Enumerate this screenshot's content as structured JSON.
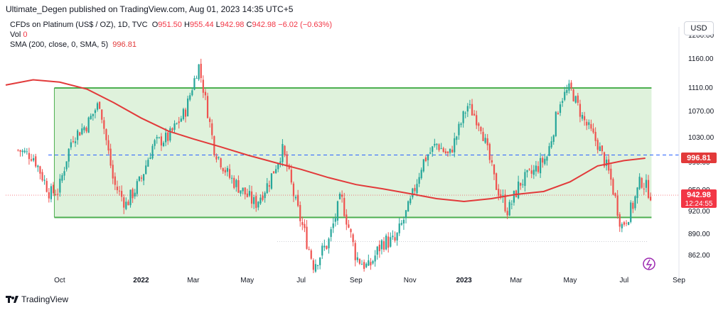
{
  "header": {
    "publisher": "Ultimate_Degen published on TradingView.com, Aug 01, 2023 14:35 UTC+5"
  },
  "legend": {
    "symbol": "CFDs on Platinum (US$ / OZ), 1D, TVC",
    "open_label": "O",
    "open_value": "951.50",
    "high_label": "H",
    "high_value": "955.44",
    "low_label": "L",
    "low_value": "942.98",
    "close_label": "C",
    "close_value": "942.98",
    "change": "−6.02 (−0.63%)",
    "vol_label": "Vol",
    "vol_value": "0",
    "sma_label": "SMA (200, close, 0, SMA, 5)",
    "sma_value": "996.81"
  },
  "currency_button": "USD",
  "branding": {
    "logo_text": "TradingView"
  },
  "colors": {
    "up": "#26a69a",
    "down": "#ef5350",
    "sma": "#e23a3a",
    "channel_fill": "#dff2dc",
    "channel_line": "#4caf50",
    "dashed_line": "#2962ff",
    "price_badge": "#f23645"
  },
  "chart_data": {
    "type": "candlestick",
    "y_axis": {
      "ticks": [
        862,
        890,
        920,
        950,
        990,
        1030,
        1070,
        1110,
        1160,
        1200
      ],
      "tick_labels": [
        "862.00",
        "890.00",
        "920.00",
        "950.00",
        "990.00",
        "1030.00",
        "1070.00",
        "1110.00",
        "1160.00",
        "1200.00"
      ]
    },
    "x_axis": {
      "ticks": [
        {
          "label": "Oct",
          "date": "2021-10-01",
          "bold": false
        },
        {
          "label": "2022",
          "date": "2022-01-01",
          "bold": true
        },
        {
          "label": "Mar",
          "date": "2022-03-01",
          "bold": false
        },
        {
          "label": "May",
          "date": "2022-05-01",
          "bold": false
        },
        {
          "label": "Jul",
          "date": "2022-07-01",
          "bold": false
        },
        {
          "label": "Sep",
          "date": "2022-09-01",
          "bold": false
        },
        {
          "label": "Nov",
          "date": "2022-11-01",
          "bold": false
        },
        {
          "label": "2023",
          "date": "2023-01-01",
          "bold": true
        },
        {
          "label": "Mar",
          "date": "2023-03-01",
          "bold": false
        },
        {
          "label": "May",
          "date": "2023-05-01",
          "bold": false
        },
        {
          "label": "Jul",
          "date": "2023-07-01",
          "bold": false
        },
        {
          "label": "Sep",
          "date": "2023-09-01",
          "bold": false
        }
      ]
    },
    "closes": [
      {
        "date": "2021-08-15",
        "close": 1010
      },
      {
        "date": "2021-09-01",
        "close": 1000
      },
      {
        "date": "2021-09-20",
        "close": 945
      },
      {
        "date": "2021-09-30",
        "close": 950
      },
      {
        "date": "2021-10-15",
        "close": 1030
      },
      {
        "date": "2021-11-01",
        "close": 1050
      },
      {
        "date": "2021-11-15",
        "close": 1085
      },
      {
        "date": "2021-12-01",
        "close": 960
      },
      {
        "date": "2021-12-15",
        "close": 930
      },
      {
        "date": "2022-01-01",
        "close": 965
      },
      {
        "date": "2022-01-15",
        "close": 1020
      },
      {
        "date": "2022-02-01",
        "close": 1030
      },
      {
        "date": "2022-02-20",
        "close": 1070
      },
      {
        "date": "2022-03-07",
        "close": 1150
      },
      {
        "date": "2022-03-25",
        "close": 1010
      },
      {
        "date": "2022-04-10",
        "close": 970
      },
      {
        "date": "2022-04-25",
        "close": 950
      },
      {
        "date": "2022-05-10",
        "close": 930
      },
      {
        "date": "2022-05-25",
        "close": 960
      },
      {
        "date": "2022-06-10",
        "close": 1010
      },
      {
        "date": "2022-06-25",
        "close": 930
      },
      {
        "date": "2022-07-15",
        "close": 850
      },
      {
        "date": "2022-08-01",
        "close": 880
      },
      {
        "date": "2022-08-15",
        "close": 940
      },
      {
        "date": "2022-09-01",
        "close": 860
      },
      {
        "date": "2022-09-15",
        "close": 845
      },
      {
        "date": "2022-10-01",
        "close": 880
      },
      {
        "date": "2022-10-15",
        "close": 880
      },
      {
        "date": "2022-11-01",
        "close": 930
      },
      {
        "date": "2022-11-15",
        "close": 990
      },
      {
        "date": "2022-12-01",
        "close": 1020
      },
      {
        "date": "2022-12-15",
        "close": 1000
      },
      {
        "date": "2023-01-05",
        "close": 1080
      },
      {
        "date": "2023-01-20",
        "close": 1050
      },
      {
        "date": "2023-02-05",
        "close": 960
      },
      {
        "date": "2023-02-20",
        "close": 920
      },
      {
        "date": "2023-03-05",
        "close": 960
      },
      {
        "date": "2023-03-20",
        "close": 975
      },
      {
        "date": "2023-04-05",
        "close": 1000
      },
      {
        "date": "2023-04-20",
        "close": 1090
      },
      {
        "date": "2023-05-01",
        "close": 1110
      },
      {
        "date": "2023-05-15",
        "close": 1060
      },
      {
        "date": "2023-06-01",
        "close": 1020
      },
      {
        "date": "2023-06-15",
        "close": 970
      },
      {
        "date": "2023-06-28",
        "close": 900
      },
      {
        "date": "2023-07-10",
        "close": 925
      },
      {
        "date": "2023-07-20",
        "close": 965
      },
      {
        "date": "2023-08-01",
        "close": 942.98
      }
    ],
    "sma_200": [
      {
        "date": "2021-08-01",
        "value": 1115
      },
      {
        "date": "2021-09-01",
        "value": 1124
      },
      {
        "date": "2021-10-01",
        "value": 1120
      },
      {
        "date": "2021-11-01",
        "value": 1108
      },
      {
        "date": "2021-12-01",
        "value": 1085
      },
      {
        "date": "2022-01-01",
        "value": 1060
      },
      {
        "date": "2022-02-01",
        "value": 1040
      },
      {
        "date": "2022-03-01",
        "value": 1028
      },
      {
        "date": "2022-04-01",
        "value": 1015
      },
      {
        "date": "2022-05-01",
        "value": 1002
      },
      {
        "date": "2022-06-01",
        "value": 990
      },
      {
        "date": "2022-07-01",
        "value": 980
      },
      {
        "date": "2022-08-01",
        "value": 968
      },
      {
        "date": "2022-09-01",
        "value": 958
      },
      {
        "date": "2022-10-01",
        "value": 952
      },
      {
        "date": "2022-11-01",
        "value": 945
      },
      {
        "date": "2022-12-01",
        "value": 938
      },
      {
        "date": "2023-01-01",
        "value": 934
      },
      {
        "date": "2023-02-01",
        "value": 938
      },
      {
        "date": "2023-03-01",
        "value": 944
      },
      {
        "date": "2023-04-01",
        "value": 948
      },
      {
        "date": "2023-05-01",
        "value": 962
      },
      {
        "date": "2023-06-01",
        "value": 985
      },
      {
        "date": "2023-07-01",
        "value": 993
      },
      {
        "date": "2023-07-25",
        "value": 996.81
      }
    ],
    "channel": {
      "upper": 1110,
      "lower": 912,
      "start_date": "2021-09-25",
      "end_date": "2023-08-01"
    },
    "dashed_level": 1002,
    "current_price": {
      "value": 942.98,
      "label": "942.98",
      "countdown": "12:24:55"
    },
    "sma_badge": {
      "value": 996.81,
      "label": "996.81"
    }
  }
}
